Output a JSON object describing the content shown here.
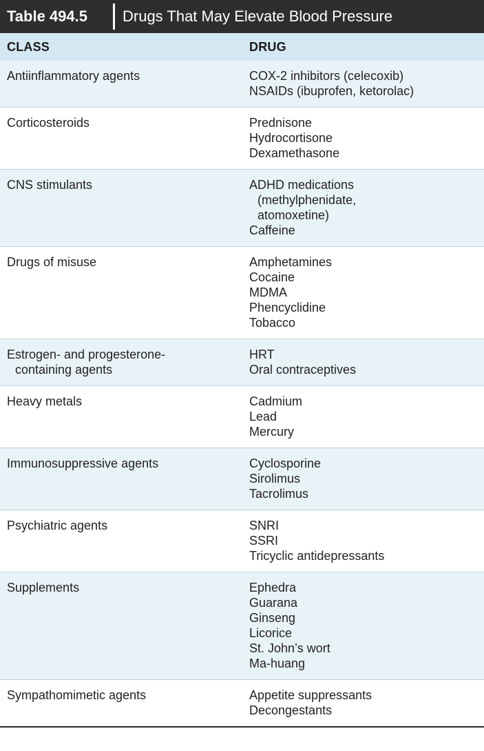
{
  "table": {
    "number": "Table 494.5",
    "title": "Drugs That May Elevate Blood Pressure",
    "columns": [
      "CLASS",
      "DRUG"
    ],
    "rows": [
      {
        "class": [
          "Antiinflammatory agents"
        ],
        "drugs": [
          "COX-2 inhibitors (celecoxib)",
          "NSAIDs (ibuprofen, ketorolac)"
        ]
      },
      {
        "class": [
          "Corticosteroids"
        ],
        "drugs": [
          "Prednisone",
          "Hydrocortisone",
          "Dexamethasone"
        ]
      },
      {
        "class": [
          "CNS stimulants"
        ],
        "drugs": [
          "ADHD medications",
          "(methylphenidate,",
          "atomoxetine)",
          "Caffeine"
        ]
      },
      {
        "class": [
          "Drugs of misuse"
        ],
        "drugs": [
          "Amphetamines",
          "Cocaine",
          "MDMA",
          "Phencyclidine",
          "Tobacco"
        ]
      },
      {
        "class": [
          "Estrogen- and progesterone-",
          "containing agents"
        ],
        "drugs": [
          "HRT",
          "Oral contraceptives"
        ]
      },
      {
        "class": [
          "Heavy metals"
        ],
        "drugs": [
          "Cadmium",
          "Lead",
          "Mercury"
        ]
      },
      {
        "class": [
          "Immunosuppressive agents"
        ],
        "drugs": [
          "Cyclosporine",
          "Sirolimus",
          "Tacrolimus"
        ]
      },
      {
        "class": [
          "Psychiatric agents"
        ],
        "drugs": [
          "SNRI",
          "SSRI",
          "Tricyclic antidepressants"
        ]
      },
      {
        "class": [
          "Supplements"
        ],
        "drugs": [
          "Ephedra",
          "Guarana",
          "Ginseng",
          "Licorice",
          "St. John’s wort",
          "Ma-huang"
        ]
      },
      {
        "class": [
          "Sympathomimetic agents"
        ],
        "drugs": [
          "Appetite suppressants",
          "Decongestants"
        ]
      }
    ]
  },
  "colors": {
    "title_bg": "#2e2e2e",
    "header_bg": "#d4e8f2",
    "row_shade": "#e8f3f8"
  }
}
